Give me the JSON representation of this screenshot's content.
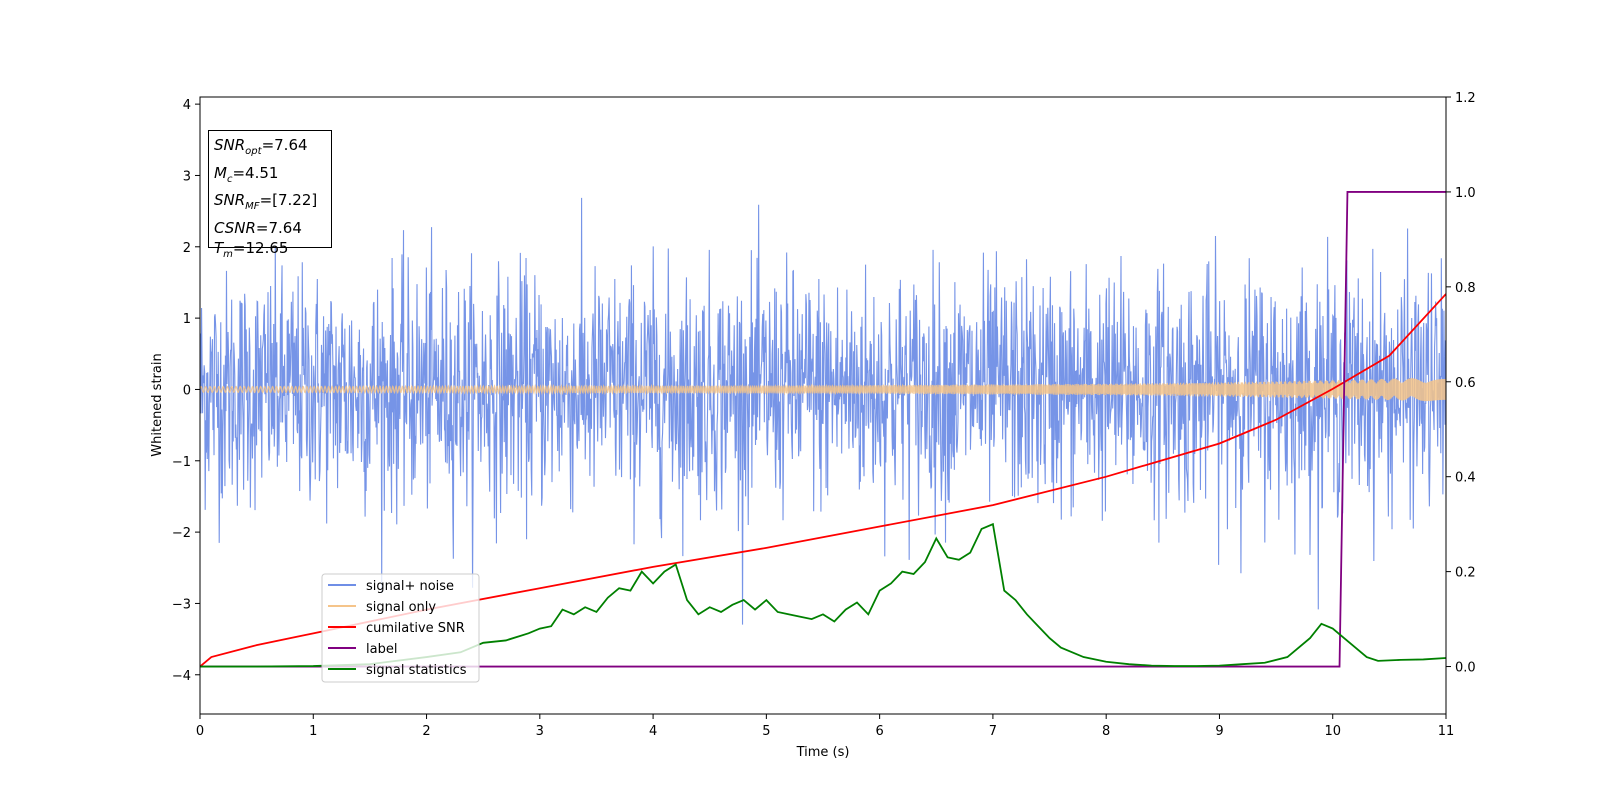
{
  "chart_data": {
    "type": "line",
    "xlabel": "Time (s)",
    "ylabel": "Whitened strain",
    "xlim": [
      0,
      11
    ],
    "ylim_left": [
      -4.55,
      4.1
    ],
    "ylim_right": [
      -0.1,
      1.2
    ],
    "x_ticks": [
      "0",
      "1",
      "2",
      "3",
      "4",
      "5",
      "6",
      "7",
      "8",
      "9",
      "10",
      "11"
    ],
    "y_left_ticks": [
      "4",
      "3",
      "2",
      "1",
      "0",
      "−1",
      "−2",
      "−3",
      "−4"
    ],
    "y_right_ticks": [
      "1.2",
      "1.0",
      "0.8",
      "0.6",
      "0.4",
      "0.2",
      "0.0"
    ],
    "legend_position": "lower-left",
    "stats": {
      "snr_opt": {
        "base": "SNR",
        "sub": "opt",
        "value": "=7.64"
      },
      "mc": {
        "base": "M",
        "sub": "c",
        "value": "=4.51"
      },
      "snr_mf": {
        "base": "SNR",
        "sub": "MF",
        "value": "=[7.22]"
      },
      "csnr": {
        "base": "CSNR",
        "sub": "",
        "value": "=7.64"
      },
      "tm": {
        "base": "T",
        "sub": "m",
        "value": "=12.65"
      }
    },
    "series": [
      {
        "name": "signal+ noise",
        "axis": "left",
        "color": "#6f8ee6",
        "kind": "noise",
        "std": 0.82,
        "range_observed": [
          -4.15,
          3.67
        ]
      },
      {
        "name": "signal only",
        "axis": "left",
        "color": "#f5c48a",
        "kind": "chirp-envelope",
        "envelope": {
          "x": [
            0,
            2,
            4,
            6,
            8,
            9,
            10,
            11
          ],
          "y": [
            0.04,
            0.045,
            0.05,
            0.06,
            0.08,
            0.1,
            0.13,
            0.17
          ]
        }
      },
      {
        "name": "cumilative SNR",
        "axis": "right",
        "color": "#ff0000",
        "x": [
          0,
          0.1,
          0.5,
          1,
          2,
          3,
          4,
          5,
          6,
          7,
          8,
          9,
          9.5,
          10,
          10.5,
          11
        ],
        "y": [
          0.0,
          0.02,
          0.045,
          0.07,
          0.12,
          0.165,
          0.21,
          0.25,
          0.295,
          0.34,
          0.4,
          0.47,
          0.52,
          0.585,
          0.655,
          0.785
        ]
      },
      {
        "name": "label",
        "axis": "right",
        "color": "#800080",
        "x": [
          0,
          10.06,
          10.13,
          11
        ],
        "y": [
          0.0,
          0.0,
          1.0,
          1.0
        ]
      },
      {
        "name": "signal statistics",
        "axis": "right",
        "color": "#008000",
        "x": [
          0,
          0.5,
          1,
          1.5,
          2,
          2.3,
          2.5,
          2.7,
          2.9,
          3.0,
          3.1,
          3.2,
          3.3,
          3.4,
          3.5,
          3.6,
          3.7,
          3.8,
          3.9,
          4.0,
          4.1,
          4.2,
          4.3,
          4.4,
          4.5,
          4.6,
          4.7,
          4.8,
          4.9,
          5.0,
          5.1,
          5.2,
          5.3,
          5.4,
          5.5,
          5.6,
          5.7,
          5.8,
          5.9,
          6.0,
          6.1,
          6.2,
          6.3,
          6.4,
          6.5,
          6.6,
          6.7,
          6.8,
          6.9,
          7.0,
          7.1,
          7.2,
          7.3,
          7.4,
          7.5,
          7.6,
          7.8,
          8.0,
          8.2,
          8.4,
          8.6,
          8.8,
          9.0,
          9.2,
          9.4,
          9.6,
          9.8,
          9.9,
          10.0,
          10.1,
          10.2,
          10.3,
          10.4,
          10.6,
          10.8,
          11.0
        ],
        "y": [
          0.0,
          0.0,
          0.001,
          0.005,
          0.02,
          0.03,
          0.05,
          0.055,
          0.07,
          0.08,
          0.085,
          0.12,
          0.11,
          0.125,
          0.115,
          0.145,
          0.165,
          0.16,
          0.2,
          0.175,
          0.2,
          0.215,
          0.14,
          0.11,
          0.125,
          0.115,
          0.13,
          0.14,
          0.12,
          0.14,
          0.115,
          0.11,
          0.105,
          0.1,
          0.11,
          0.095,
          0.12,
          0.135,
          0.11,
          0.16,
          0.175,
          0.2,
          0.195,
          0.22,
          0.27,
          0.23,
          0.225,
          0.24,
          0.29,
          0.3,
          0.16,
          0.14,
          0.11,
          0.085,
          0.06,
          0.04,
          0.02,
          0.01,
          0.005,
          0.002,
          0.001,
          0.001,
          0.002,
          0.005,
          0.008,
          0.02,
          0.06,
          0.09,
          0.08,
          0.06,
          0.04,
          0.02,
          0.012,
          0.014,
          0.015,
          0.018
        ]
      }
    ]
  }
}
